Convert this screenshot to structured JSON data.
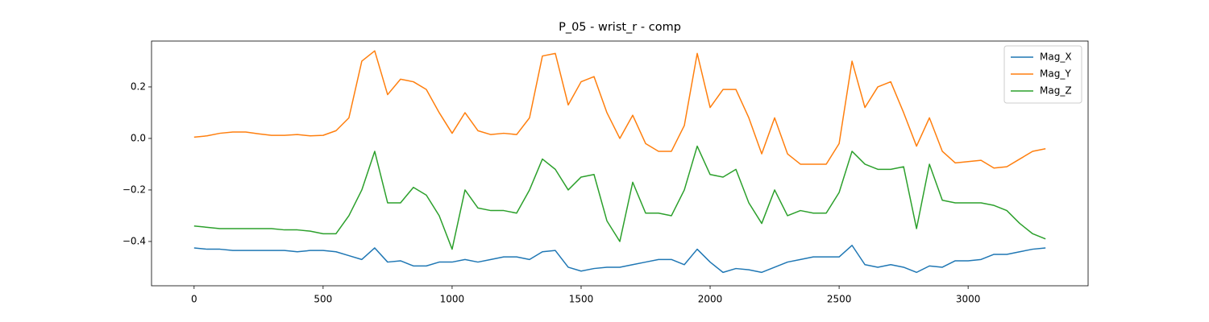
{
  "chart_data": {
    "type": "line",
    "title": "P_05 - wrist_r - comp",
    "x": [
      0,
      50,
      100,
      150,
      200,
      250,
      300,
      350,
      400,
      450,
      500,
      550,
      600,
      650,
      700,
      750,
      800,
      850,
      900,
      950,
      1000,
      1050,
      1100,
      1150,
      1200,
      1250,
      1300,
      1350,
      1400,
      1450,
      1500,
      1550,
      1600,
      1650,
      1700,
      1750,
      1800,
      1850,
      1900,
      1950,
      2000,
      2050,
      2100,
      2150,
      2200,
      2250,
      2300,
      2350,
      2400,
      2450,
      2500,
      2550,
      2600,
      2650,
      2700,
      2750,
      2800,
      2850,
      2900,
      2950,
      3000,
      3050,
      3100,
      3150,
      3200,
      3250,
      3300
    ],
    "series": [
      {
        "name": "Mag_X",
        "color": "#1f77b4",
        "values": [
          -0.425,
          -0.43,
          -0.43,
          -0.435,
          -0.435,
          -0.435,
          -0.435,
          -0.435,
          -0.44,
          -0.435,
          -0.435,
          -0.44,
          -0.455,
          -0.47,
          -0.425,
          -0.48,
          -0.475,
          -0.495,
          -0.495,
          -0.48,
          -0.48,
          -0.47,
          -0.48,
          -0.47,
          -0.46,
          -0.46,
          -0.47,
          -0.44,
          -0.435,
          -0.5,
          -0.515,
          -0.505,
          -0.5,
          -0.5,
          -0.49,
          -0.48,
          -0.47,
          -0.47,
          -0.49,
          -0.43,
          -0.48,
          -0.52,
          -0.505,
          -0.51,
          -0.52,
          -0.5,
          -0.48,
          -0.47,
          -0.46,
          -0.46,
          -0.46,
          -0.415,
          -0.49,
          -0.5,
          -0.49,
          -0.5,
          -0.52,
          -0.495,
          -0.5,
          -0.475,
          -0.475,
          -0.47,
          -0.45,
          -0.45,
          -0.44,
          -0.43,
          -0.425
        ]
      },
      {
        "name": "Mag_Y",
        "color": "#ff7f0e",
        "values": [
          0.005,
          0.01,
          0.02,
          0.025,
          0.025,
          0.018,
          0.012,
          0.012,
          0.015,
          0.01,
          0.012,
          0.03,
          0.08,
          0.3,
          0.34,
          0.17,
          0.23,
          0.22,
          0.19,
          0.1,
          0.02,
          0.1,
          0.03,
          0.015,
          0.02,
          0.015,
          0.08,
          0.32,
          0.33,
          0.13,
          0.22,
          0.24,
          0.1,
          0.0,
          0.09,
          -0.02,
          -0.05,
          -0.05,
          0.05,
          0.33,
          0.12,
          0.19,
          0.19,
          0.08,
          -0.06,
          0.08,
          -0.06,
          -0.1,
          -0.1,
          -0.1,
          -0.02,
          0.3,
          0.12,
          0.2,
          0.22,
          0.1,
          -0.03,
          0.08,
          -0.05,
          -0.095,
          -0.09,
          -0.085,
          -0.115,
          -0.11,
          -0.08,
          -0.05,
          -0.04
        ]
      },
      {
        "name": "Mag_Z",
        "color": "#2ca02c",
        "values": [
          -0.34,
          -0.345,
          -0.35,
          -0.35,
          -0.35,
          -0.35,
          -0.35,
          -0.355,
          -0.355,
          -0.36,
          -0.37,
          -0.37,
          -0.3,
          -0.2,
          -0.05,
          -0.25,
          -0.25,
          -0.19,
          -0.22,
          -0.3,
          -0.43,
          -0.2,
          -0.27,
          -0.28,
          -0.28,
          -0.29,
          -0.2,
          -0.08,
          -0.12,
          -0.2,
          -0.15,
          -0.14,
          -0.32,
          -0.4,
          -0.17,
          -0.29,
          -0.29,
          -0.3,
          -0.2,
          -0.03,
          -0.14,
          -0.15,
          -0.12,
          -0.25,
          -0.33,
          -0.2,
          -0.3,
          -0.28,
          -0.29,
          -0.29,
          -0.21,
          -0.05,
          -0.1,
          -0.12,
          -0.12,
          -0.11,
          -0.35,
          -0.1,
          -0.24,
          -0.25,
          -0.25,
          -0.25,
          -0.26,
          -0.28,
          -0.33,
          -0.37,
          -0.39
        ]
      }
    ],
    "xlim": [
      -165,
      3465
    ],
    "ylim": [
      -0.572,
      0.378
    ],
    "xticks": [
      0,
      500,
      1000,
      1500,
      2000,
      2500,
      3000
    ],
    "yticks": [
      {
        "value": -0.4,
        "label": "−0.4"
      },
      {
        "value": -0.2,
        "label": "−0.2"
      },
      {
        "value": 0.0,
        "label": "0.0"
      },
      0.2
    ],
    "legend": "upper right"
  }
}
